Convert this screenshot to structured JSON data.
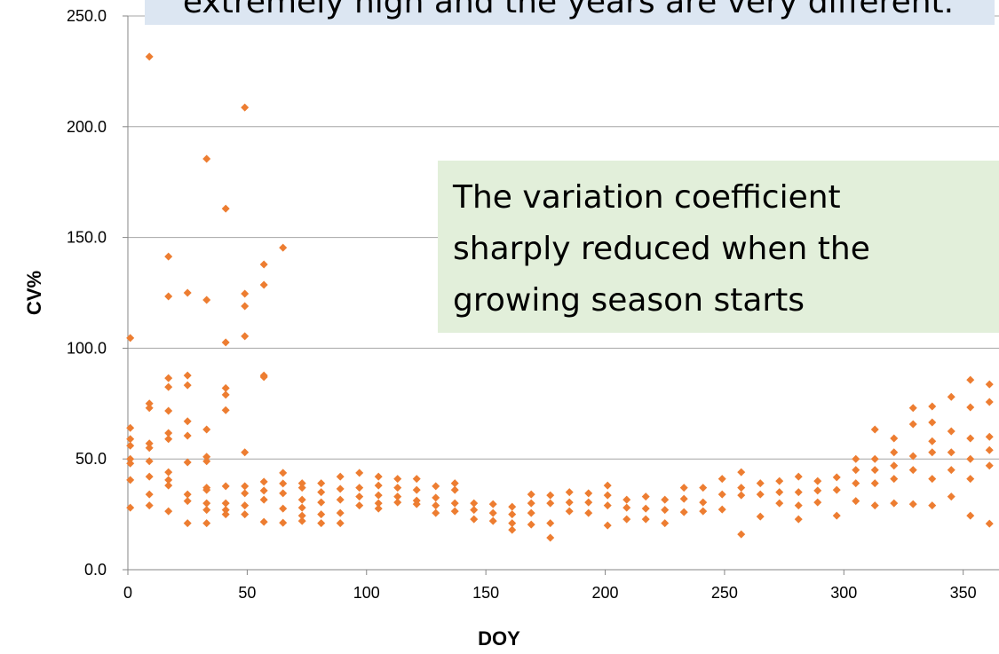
{
  "chart_data": {
    "type": "scatter",
    "x_label": "DOY",
    "y_label": "CV%",
    "color": "#ed7d31",
    "xlim": [
      0,
      365
    ],
    "ylim": [
      0,
      250
    ],
    "xticks": [
      0,
      50,
      100,
      150,
      200,
      250,
      300,
      350
    ],
    "yticks": [
      {
        "value": 0,
        "label": "0.0"
      },
      {
        "value": 50,
        "label": "50.0"
      },
      {
        "value": 100,
        "label": "100.0"
      },
      {
        "value": 150,
        "label": "150.0"
      },
      {
        "value": 200,
        "label": "200.0"
      },
      {
        "value": 250,
        "label": "250.0"
      }
    ],
    "grid": true,
    "annotations": [
      {
        "lines": [
          "extremely high and the years are very different."
        ],
        "color": "#dce6f2"
      },
      {
        "lines": [
          "The variation coefficient",
          "sharply reduced when the",
          "growing season starts"
        ],
        "color": "#e2efda"
      }
    ],
    "x": [
      1,
      1,
      1,
      1,
      1,
      1,
      1,
      1,
      9,
      9,
      9,
      9,
      9,
      9,
      9,
      9,
      9,
      17,
      17,
      17,
      17,
      17,
      17,
      17,
      17,
      17,
      17,
      17,
      25,
      25,
      25,
      25,
      25,
      25,
      25,
      25,
      25,
      33,
      33,
      33,
      33,
      33,
      33,
      33,
      33,
      33,
      33,
      41,
      41,
      41,
      41,
      41,
      41,
      41,
      41,
      41,
      49,
      49,
      49,
      49,
      49,
      49,
      49,
      49,
      49,
      57,
      57,
      57,
      57,
      57,
      57,
      57,
      57,
      65,
      65,
      65,
      65,
      65,
      65,
      73,
      73,
      73,
      73,
      73,
      73,
      81,
      81,
      81,
      81,
      81,
      89,
      89,
      89,
      89,
      89,
      97,
      97,
      97,
      97,
      105,
      105,
      105,
      105,
      105,
      113,
      113,
      113,
      113,
      121,
      121,
      121,
      121,
      129,
      129,
      129,
      129,
      137,
      137,
      137,
      137,
      145,
      145,
      145,
      153,
      153,
      153,
      161,
      161,
      161,
      161,
      169,
      169,
      169,
      169,
      177,
      177,
      177,
      177,
      185,
      185,
      185,
      193,
      193,
      193,
      201,
      201,
      201,
      201,
      209,
      209,
      209,
      217,
      217,
      217,
      225,
      225,
      225,
      233,
      233,
      233,
      241,
      241,
      241,
      249,
      249,
      249,
      257,
      257,
      257,
      257,
      265,
      265,
      265,
      273,
      273,
      273,
      281,
      281,
      281,
      281,
      289,
      289,
      289,
      297,
      297,
      297,
      305,
      305,
      305,
      305,
      313,
      313,
      313,
      313,
      313,
      321,
      321,
      321,
      321,
      321,
      329,
      329,
      329,
      329,
      329,
      337,
      337,
      337,
      337,
      337,
      337,
      345,
      345,
      345,
      345,
      345,
      353,
      353,
      353,
      353,
      353,
      353,
      361,
      361,
      361,
      361,
      361,
      361
    ],
    "values": [
      104.6,
      64,
      59,
      56,
      50,
      48,
      40.5,
      28,
      231.6,
      75,
      73,
      57,
      55,
      49,
      42,
      34,
      29,
      141.4,
      123.4,
      86.5,
      82.5,
      71.7,
      61.7,
      59,
      44,
      40.5,
      38,
      26.4,
      125,
      87.7,
      83.3,
      67,
      60.5,
      48.5,
      34,
      31,
      21,
      185.5,
      121.8,
      63.3,
      51,
      49,
      37,
      36,
      30,
      27,
      21,
      163,
      102.6,
      82,
      79,
      72,
      37.7,
      30,
      27,
      25,
      208.7,
      124.6,
      119,
      105.4,
      53,
      37.7,
      34.5,
      29,
      25,
      137.8,
      128.6,
      87.7,
      87,
      39.7,
      35.7,
      31.6,
      21.6,
      145.4,
      43.7,
      38.9,
      34.5,
      27.6,
      21.2,
      39,
      37,
      31.6,
      28,
      24.4,
      22,
      39,
      35,
      30.4,
      25,
      21,
      42,
      36.5,
      31.6,
      25.6,
      21,
      43.7,
      37,
      33,
      29,
      42,
      38,
      33.6,
      30,
      27.6,
      41,
      37,
      33,
      30.4,
      41,
      36,
      31.2,
      29.6,
      37.7,
      32.5,
      29,
      25.6,
      39,
      36,
      30,
      26.4,
      30,
      27,
      22.8,
      29.6,
      25.6,
      22,
      28.4,
      25,
      21,
      18,
      34,
      30,
      25.6,
      20.4,
      33.6,
      30,
      21,
      14.4,
      35,
      30.4,
      26.4,
      34.5,
      30.4,
      25.6,
      38,
      33.6,
      29,
      20,
      31.6,
      28,
      22.8,
      33,
      27.6,
      22.8,
      31.6,
      27,
      21,
      37,
      32,
      26,
      37,
      30.4,
      26.4,
      41,
      34,
      27.2,
      44,
      37,
      33.6,
      16,
      39,
      34,
      24,
      40,
      35,
      30,
      42,
      35,
      29,
      22.8,
      40,
      35.7,
      30.4,
      41.7,
      36,
      24.4,
      50,
      45,
      39,
      31,
      63.3,
      50,
      45,
      39,
      29,
      59.3,
      53,
      47,
      41,
      30,
      73,
      65.7,
      51.3,
      45,
      29.6,
      73.7,
      66.5,
      58,
      53,
      41,
      29,
      78,
      62.5,
      53,
      45,
      33,
      85.7,
      73.3,
      59.3,
      50,
      41,
      24.4,
      83.7,
      75.7,
      60,
      54,
      47,
      20.8
    ]
  }
}
